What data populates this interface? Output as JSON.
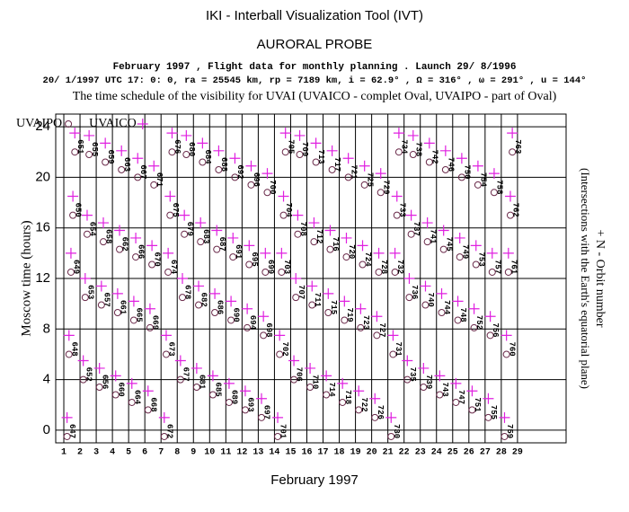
{
  "chart_data": {
    "type": "scatter",
    "title": "IKI - Interball Visualization Tool (IVT)",
    "subtitle": "AURORAL PROBE",
    "info_line_1": "February 1997 ,  Flight data for monthly planning .   Launch 29/ 8/1996",
    "info_line_2": "20/ 1/1997 UTC 17: 0: 0, ra =  25545 km, rp =   7189 km, i = 62.9° , Ω = 316° , ω = 291° , u = 144°",
    "description": "The time schedule of the visibility for UVAI (UVAICO - complet Oval, UVAIPO - part of Oval)",
    "x_label": "February 1997",
    "y_label": "Moscow time (hours)",
    "y2_label": "+ N - Orbit number",
    "y2_sublabel": "(Intersections with the Earth's equatorial plane)",
    "xlim": [
      0.5,
      32
    ],
    "ylim": [
      -1,
      25
    ],
    "xticks": [
      1,
      2,
      3,
      4,
      5,
      6,
      7,
      8,
      9,
      10,
      11,
      12,
      13,
      14,
      15,
      16,
      17,
      18,
      19,
      20,
      21,
      22,
      23,
      24,
      25,
      26,
      27,
      28,
      29
    ],
    "yticks": [
      0,
      4,
      8,
      12,
      16,
      20,
      24
    ],
    "grid": true,
    "series": [
      {
        "name": "UVAIPO",
        "marker": "o",
        "color": "#6a2a4a",
        "x": [
          1.2,
          1.32,
          1.44,
          1.56,
          1.68,
          2.2,
          2.32,
          2.44,
          2.56,
          3.2,
          3.32,
          3.44,
          3.56,
          4.2,
          4.32,
          4.44,
          4.56,
          5.2,
          5.32,
          5.44,
          5.56,
          6.2,
          6.32,
          6.44,
          6.56,
          7.2,
          7.32,
          7.44,
          7.56,
          7.68,
          8.2,
          8.32,
          8.44,
          8.56,
          9.2,
          9.32,
          9.44,
          9.56,
          10.2,
          10.32,
          10.44,
          10.56,
          11.2,
          11.32,
          11.44,
          11.56,
          12.2,
          12.32,
          12.44,
          12.56,
          13.2,
          13.32,
          13.44,
          13.56,
          14.2,
          14.32,
          14.44,
          14.56,
          14.68,
          15.2,
          15.32,
          15.44,
          15.56,
          16.2,
          16.32,
          16.44,
          16.56,
          17.2,
          17.32,
          17.44,
          17.56,
          18.2,
          18.32,
          18.44,
          18.56,
          19.2,
          19.32,
          19.44,
          19.56,
          20.2,
          20.32,
          20.44,
          20.56,
          21.2,
          21.32,
          21.44,
          21.56,
          21.68,
          22.2,
          22.32,
          22.44,
          22.56,
          23.2,
          23.32,
          23.44,
          23.56,
          24.2,
          24.32,
          24.44,
          24.56,
          25.2,
          25.32,
          25.44,
          25.56,
          26.2,
          26.32,
          26.44,
          26.56,
          27.2,
          27.32,
          27.44,
          27.56,
          28.2,
          28.32,
          28.44,
          28.56,
          28.68
        ],
        "y": [
          -0.5,
          6,
          12.5,
          17,
          22,
          4,
          10.5,
          15.5,
          21.8,
          3.4,
          9.9,
          14.9,
          21.2,
          2.8,
          9.3,
          14.3,
          20.6,
          2.2,
          8.7,
          13.7,
          20,
          1.6,
          8.1,
          13.1,
          19.4,
          -0.5,
          6,
          12.5,
          17,
          22,
          4,
          10.5,
          15.5,
          21.8,
          3.4,
          9.9,
          14.9,
          21.2,
          2.8,
          9.3,
          14.3,
          20.6,
          2.2,
          8.7,
          13.7,
          20,
          1.6,
          8.1,
          13.1,
          19.4,
          1,
          7.5,
          12.5,
          18.8,
          -0.5,
          6,
          12.5,
          17,
          22,
          4,
          10.5,
          15.5,
          21.8,
          3.4,
          9.9,
          14.9,
          21.2,
          2.8,
          9.3,
          14.3,
          20.6,
          2.2,
          8.7,
          13.7,
          20,
          1.6,
          8.1,
          13.1,
          19.4,
          1,
          7.5,
          12.5,
          18.8,
          -0.5,
          6,
          12.5,
          17,
          22,
          4,
          10.5,
          15.5,
          21.8,
          3.4,
          9.9,
          14.9,
          21.2,
          2.8,
          9.3,
          14.3,
          20.6,
          2.2,
          8.7,
          13.7,
          20,
          1.6,
          8.1,
          13.1,
          19.4,
          1,
          7.5,
          12.5,
          18.8,
          -0.5,
          6,
          12.5,
          17,
          22
        ]
      },
      {
        "name": "UVAICO",
        "marker": "+",
        "color": "#e020e0",
        "x": [
          1.2,
          1.32,
          1.44,
          1.56,
          1.68,
          2.2,
          2.32,
          2.44,
          2.56,
          3.2,
          3.32,
          3.44,
          3.56,
          4.2,
          4.32,
          4.44,
          4.56,
          5.2,
          5.32,
          5.44,
          5.56,
          6.2,
          6.32,
          6.44,
          6.56,
          7.2,
          7.32,
          7.44,
          7.56,
          7.68,
          8.2,
          8.32,
          8.44,
          8.56,
          9.2,
          9.32,
          9.44,
          9.56,
          10.2,
          10.32,
          10.44,
          10.56,
          11.2,
          11.32,
          11.44,
          11.56,
          12.2,
          12.32,
          12.44,
          12.56,
          13.2,
          13.32,
          13.44,
          13.56,
          14.2,
          14.32,
          14.44,
          14.56,
          14.68,
          15.2,
          15.32,
          15.44,
          15.56,
          16.2,
          16.32,
          16.44,
          16.56,
          17.2,
          17.32,
          17.44,
          17.56,
          18.2,
          18.32,
          18.44,
          18.56,
          19.2,
          19.32,
          19.44,
          19.56,
          20.2,
          20.32,
          20.44,
          20.56,
          21.2,
          21.32,
          21.44,
          21.56,
          21.68,
          22.2,
          22.32,
          22.44,
          22.56,
          23.2,
          23.32,
          23.44,
          23.56,
          24.2,
          24.32,
          24.44,
          24.56,
          25.2,
          25.32,
          25.44,
          25.56,
          26.2,
          26.32,
          26.44,
          26.56,
          27.2,
          27.32,
          27.44,
          27.56,
          28.2,
          28.32,
          28.44,
          28.56,
          28.68
        ],
        "y": [
          1,
          7.5,
          14,
          18.5,
          23.5,
          5.5,
          12,
          17,
          23.3,
          4.9,
          11.4,
          16.4,
          22.7,
          4.3,
          10.8,
          15.8,
          22.1,
          3.7,
          10.2,
          15.2,
          21.5,
          3.1,
          9.6,
          14.6,
          20.9,
          1,
          7.5,
          14,
          18.5,
          23.5,
          5.5,
          12,
          17,
          23.3,
          4.9,
          11.4,
          16.4,
          22.7,
          4.3,
          10.8,
          15.8,
          22.1,
          3.7,
          10.2,
          15.2,
          21.5,
          3.1,
          9.6,
          14.6,
          20.9,
          2.5,
          9,
          14,
          20.3,
          1,
          7.5,
          14,
          18.5,
          23.5,
          5.5,
          12,
          17,
          23.3,
          4.9,
          11.4,
          16.4,
          22.7,
          4.3,
          10.8,
          15.8,
          22.1,
          3.7,
          10.2,
          15.2,
          21.5,
          3.1,
          9.6,
          14.6,
          20.9,
          2.5,
          9,
          14,
          20.3,
          1,
          7.5,
          14,
          18.5,
          23.5,
          5.5,
          12,
          17,
          23.3,
          4.9,
          11.4,
          16.4,
          22.7,
          4.3,
          10.8,
          15.8,
          22.1,
          3.7,
          10.2,
          15.2,
          21.5,
          3.1,
          9.6,
          14.6,
          20.9,
          2.5,
          9,
          14,
          20.3,
          1,
          7.5,
          14,
          18.5,
          23.5
        ]
      }
    ],
    "orbit_labels": [
      "647",
      "648",
      "649",
      "650",
      "651",
      "652",
      "653",
      "654",
      "655",
      "656",
      "657",
      "658",
      "659",
      "660",
      "661",
      "662",
      "663",
      "664",
      "665",
      "666",
      "667",
      "668",
      "669",
      "670",
      "671",
      "672",
      "673",
      "674",
      "675",
      "676",
      "677",
      "678",
      "679",
      "680",
      "681",
      "682",
      "683",
      "684",
      "685",
      "686",
      "687",
      "688",
      "689",
      "690",
      "691",
      "692",
      "693",
      "694",
      "695",
      "696",
      "697",
      "698",
      "699",
      "700",
      "701",
      "702",
      "703",
      "704",
      "705",
      "706",
      "707",
      "708",
      "709",
      "710",
      "711",
      "712",
      "713",
      "714",
      "715",
      "716",
      "717",
      "718",
      "719",
      "720",
      "721",
      "722",
      "723",
      "724",
      "725",
      "726",
      "727",
      "728",
      "729",
      "730",
      "731",
      "732",
      "733",
      "734",
      "735",
      "736",
      "737",
      "738",
      "739",
      "740",
      "741",
      "742",
      "743",
      "744",
      "745",
      "746",
      "747",
      "748",
      "749",
      "750",
      "751",
      "752",
      "753",
      "754",
      "755",
      "756",
      "757",
      "758",
      "759",
      "760",
      "761",
      "762",
      "763"
    ]
  }
}
